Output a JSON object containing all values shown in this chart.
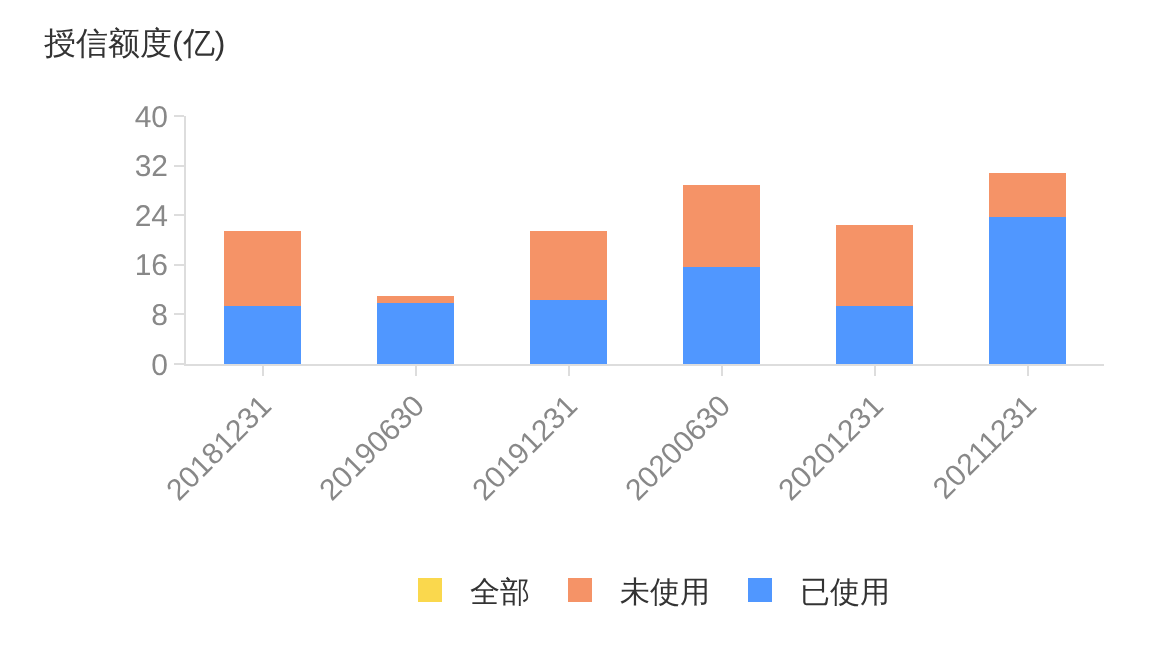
{
  "chart_data": {
    "type": "bar",
    "stacked": true,
    "ylabel": "授信额度(亿)",
    "categories": [
      "20181231",
      "20190630",
      "20191231",
      "20200630",
      "20201231",
      "20211231"
    ],
    "series": [
      {
        "name": "已使用",
        "color": "#5097ff",
        "values": [
          9.4,
          9.8,
          10.4,
          15.7,
          9.4,
          23.7
        ]
      },
      {
        "name": "未使用",
        "color": "#f59367",
        "values": [
          12.0,
          1.1,
          11.0,
          13.2,
          13.0,
          7.1
        ]
      },
      {
        "name": "全部",
        "color": "#fad84d",
        "values": [
          null,
          null,
          null,
          null,
          null,
          null
        ]
      }
    ],
    "ylim": [
      0,
      40
    ],
    "yticks": [
      0,
      8,
      16,
      24,
      32,
      40
    ],
    "grid": false,
    "legend": "bottom"
  }
}
